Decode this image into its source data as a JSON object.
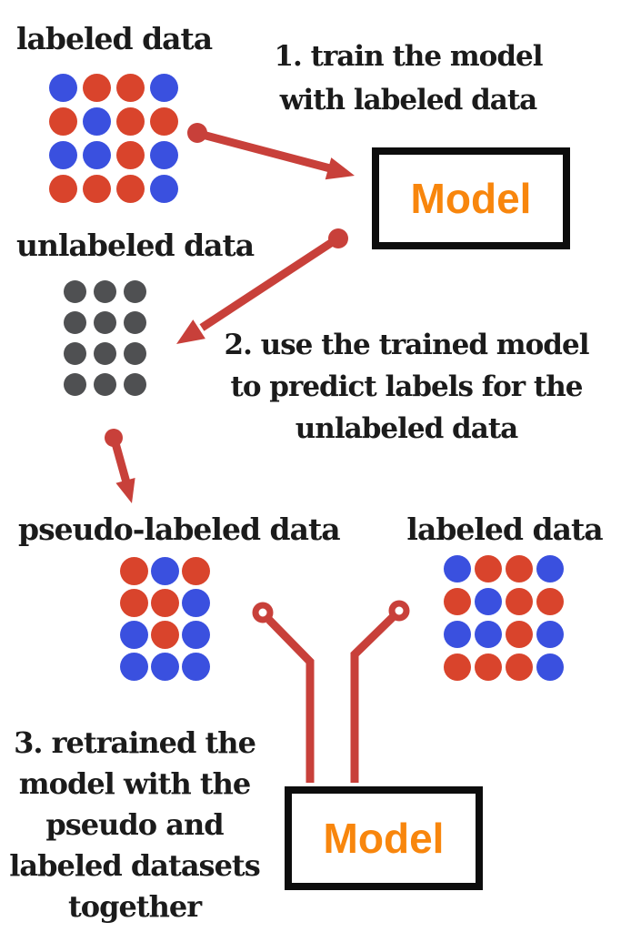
{
  "palette": {
    "red": "#D9442C",
    "blue": "#3A50DF",
    "gray": "#4F5052",
    "arrow": "#C8403A",
    "orange": "#F8860D",
    "box_border": "#0D0D0D",
    "text": "#1B1B1B"
  },
  "labels": {
    "labeled_top": "labeled data",
    "unlabeled": "unlabeled data",
    "pseudo": "pseudo-labeled data",
    "labeled_right": "labeled data",
    "model_top": "Model",
    "model_bottom": "Model"
  },
  "steps": {
    "step1": "1. train the model\nwith labeled data",
    "step2": "2. use the trained model\nto predict labels for the\nunlabeled data",
    "step3": "3. retrained the\nmodel with the\npseudo and\nlabeled datasets\ntogether"
  },
  "grids": {
    "labeled_top": [
      [
        "blue",
        "red",
        "red",
        "blue"
      ],
      [
        "red",
        "blue",
        "red",
        "red"
      ],
      [
        "blue",
        "blue",
        "red",
        "blue"
      ],
      [
        "red",
        "red",
        "red",
        "blue"
      ]
    ],
    "unlabeled": [
      [
        "gray",
        "gray",
        "gray"
      ],
      [
        "gray",
        "gray",
        "gray"
      ],
      [
        "gray",
        "gray",
        "gray"
      ],
      [
        "gray",
        "gray",
        "gray"
      ]
    ],
    "pseudo": [
      [
        "red",
        "blue",
        "red"
      ],
      [
        "red",
        "red",
        "blue"
      ],
      [
        "blue",
        "red",
        "blue"
      ],
      [
        "blue",
        "blue",
        "blue"
      ]
    ],
    "labeled_right": [
      [
        "blue",
        "red",
        "red",
        "blue"
      ],
      [
        "red",
        "blue",
        "red",
        "red"
      ],
      [
        "blue",
        "blue",
        "red",
        "blue"
      ],
      [
        "red",
        "red",
        "red",
        "blue"
      ]
    ]
  },
  "icons": {
    "arrow1": "arrow-to-model",
    "arrow2": "arrow-to-unlabeled",
    "arrow3": "arrow-to-pseudo",
    "connector_left": "elbow-connector-left",
    "connector_right": "elbow-connector-right"
  }
}
